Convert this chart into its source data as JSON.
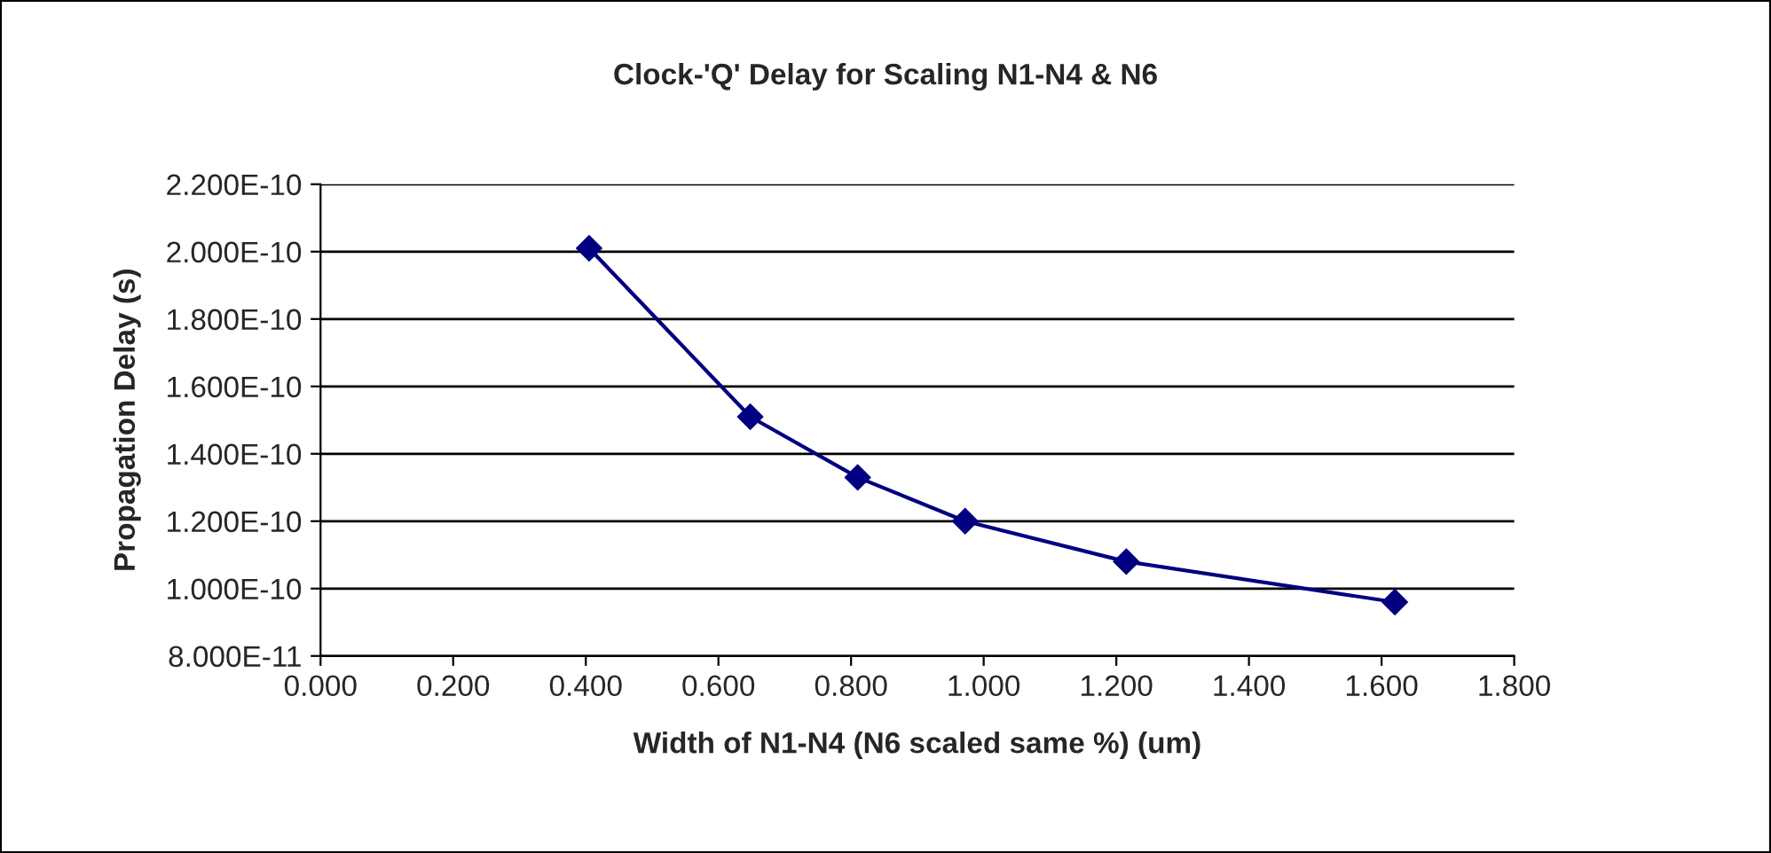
{
  "chart_data": {
    "type": "line",
    "title": "Clock-'Q' Delay for Scaling N1-N4 & N6",
    "xlabel": "Width of N1-N4 (N6 scaled same %) (um)",
    "ylabel": "Propagation Delay (s)",
    "x": [
      0.405,
      0.648,
      0.81,
      0.972,
      1.215,
      1.62
    ],
    "series": [
      {
        "color": "#000080",
        "values": [
          2.01e-10,
          1.51e-10,
          1.33e-10,
          1.2e-10,
          1.08e-10,
          9.6e-11
        ]
      }
    ],
    "xlim": [
      0,
      1.8
    ],
    "xticks": [
      {
        "value": 0,
        "label": "0.000"
      },
      {
        "value": 0.2,
        "label": "0.200"
      },
      {
        "value": 0.4,
        "label": "0.400"
      },
      {
        "value": 0.6,
        "label": "0.600"
      },
      {
        "value": 0.8,
        "label": "0.800"
      },
      {
        "value": 1.0,
        "label": "1.000"
      },
      {
        "value": 1.2,
        "label": "1.200"
      },
      {
        "value": 1.4,
        "label": "1.400"
      },
      {
        "value": 1.6,
        "label": "1.600"
      },
      {
        "value": 1.8,
        "label": "1.800"
      }
    ],
    "ylim": [
      8e-11,
      2.2e-10
    ],
    "yticks": [
      {
        "value": 8e-11,
        "label": "8.000E-11"
      },
      {
        "value": 1e-10,
        "label": "1.000E-10"
      },
      {
        "value": 1.2e-10,
        "label": "1.200E-10"
      },
      {
        "value": 1.4e-10,
        "label": "1.400E-10"
      },
      {
        "value": 1.6e-10,
        "label": "1.600E-10"
      },
      {
        "value": 1.8e-10,
        "label": "1.800E-10"
      },
      {
        "value": 2e-10,
        "label": "2.000E-10"
      },
      {
        "value": 2.2e-10,
        "label": "2.200E-10"
      }
    ],
    "grid": "y",
    "marker": "diamond",
    "line_style": "solid"
  }
}
